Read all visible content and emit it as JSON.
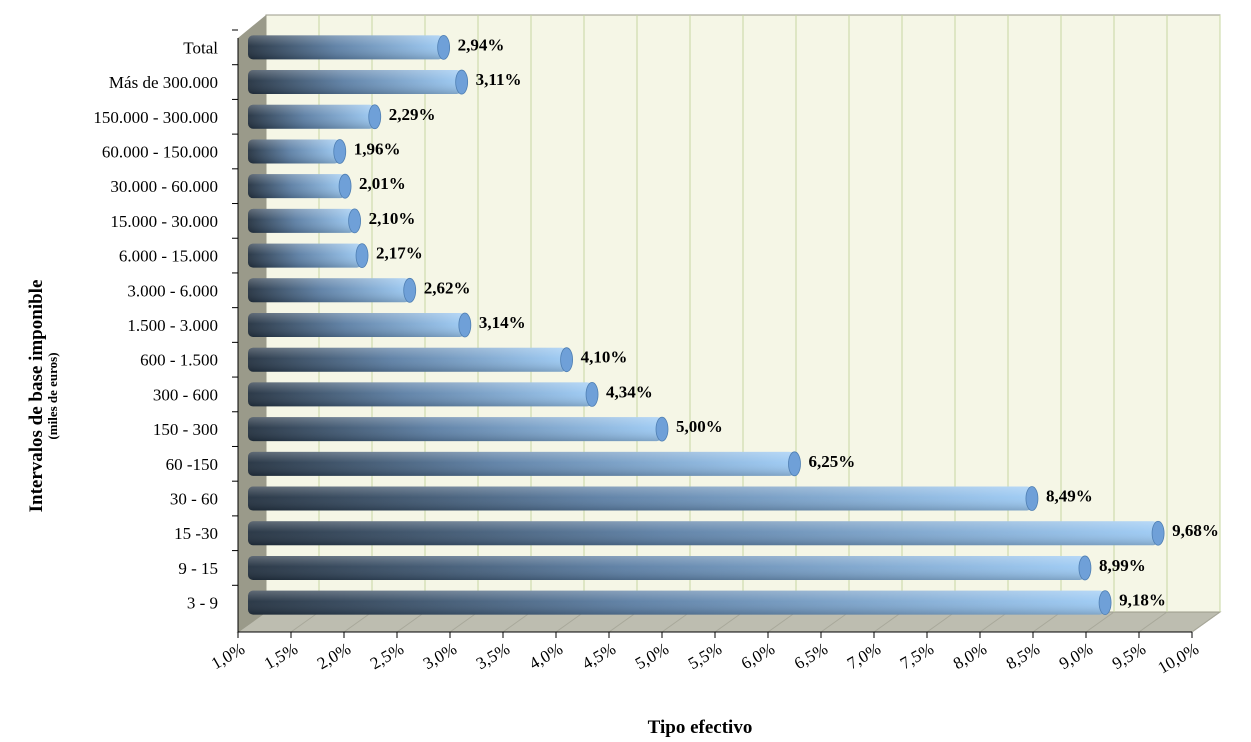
{
  "chart_data": {
    "type": "bar",
    "orientation": "horizontal",
    "categories": [
      "Total",
      "Más de 300.000",
      "150.000 - 300.000",
      "60.000 - 150.000",
      "30.000 - 60.000",
      "15.000 - 30.000",
      "6.000 - 15.000",
      "3.000 - 6.000",
      "1.500 - 3.000",
      "600 - 1.500",
      "300 - 600",
      "150 - 300",
      "60 -150",
      "30 - 60",
      "15 -30",
      "9 - 15",
      "3 - 9"
    ],
    "values": [
      2.94,
      3.11,
      2.29,
      1.96,
      2.01,
      2.1,
      2.17,
      2.62,
      3.14,
      4.1,
      4.34,
      5.0,
      6.25,
      8.49,
      9.68,
      8.99,
      9.18
    ],
    "value_labels": [
      "2,94%",
      "3,11%",
      "2,29%",
      "1,96%",
      "2,01%",
      "2,10%",
      "2,17%",
      "2,62%",
      "3,14%",
      "4,10%",
      "4,34%",
      "5,00%",
      "6,25%",
      "8,49%",
      "9,68%",
      "8,99%",
      "9,18%"
    ],
    "xlim": [
      1.0,
      10.0
    ],
    "x_ticks": [
      1.0,
      1.5,
      2.0,
      2.5,
      3.0,
      3.5,
      4.0,
      4.5,
      5.0,
      5.5,
      6.0,
      6.5,
      7.0,
      7.5,
      8.0,
      8.5,
      9.0,
      9.5,
      10.0
    ],
    "x_tick_labels": [
      "1,0%",
      "1,5%",
      "2,0%",
      "2,5%",
      "3,0%",
      "3,5%",
      "4,0%",
      "4,5%",
      "5,0%",
      "5,5%",
      "6,0%",
      "6,5%",
      "7,0%",
      "7,5%",
      "8,0%",
      "8,5%",
      "9,0%",
      "9,5%",
      "10,0%"
    ],
    "xlabel": "Tipo efectivo",
    "ylabel": "Intervalos de base imponible",
    "ylabel_sub": "(miles de euros)",
    "grid": true,
    "colors": {
      "plot_bg": "#f5f6e6",
      "grid": "#c7d7a2",
      "wall": "#9a9a8a",
      "floor": "#bdbdb0",
      "bar_dark": "#22303f",
      "bar_mid": "#5b7ea4",
      "bar_light": "#9ccaf4",
      "bar_end": "#6fa0d8"
    }
  }
}
